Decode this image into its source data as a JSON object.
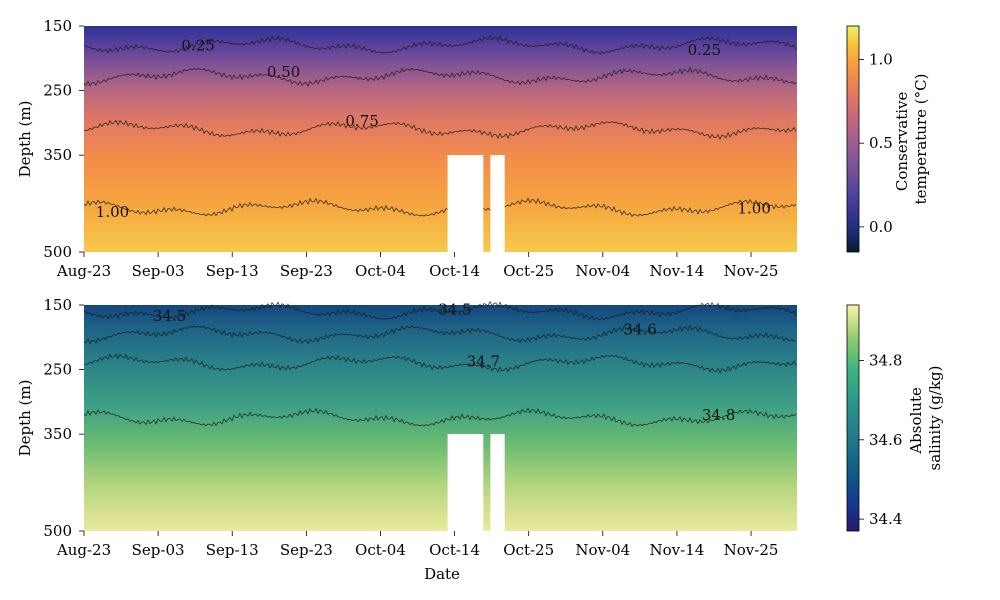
{
  "chart_data": [
    {
      "type": "heatmap",
      "title": "",
      "xlabel": "",
      "ylabel": "Depth (m)",
      "x_ticks": [
        "Aug-23",
        "Sep-03",
        "Sep-13",
        "Sep-23",
        "Oct-04",
        "Oct-14",
        "Oct-25",
        "Nov-04",
        "Nov-14",
        "Nov-25"
      ],
      "xlim": [
        "2021-08-23",
        "2021-12-01"
      ],
      "y_ticks": [
        150,
        250,
        350,
        500
      ],
      "ylim": [
        500,
        150
      ],
      "colorbar": {
        "label": "Conservative temperature (°C)",
        "label_lines": [
          "Conservative",
          "temperature (°C)"
        ],
        "colormap": "thermal",
        "range": [
          -0.15,
          1.2
        ],
        "ticks": [
          "0.0",
          "0.5",
          "1.0"
        ]
      },
      "gaps": [
        {
          "start": "2021-10-13",
          "end": "2021-10-18",
          "depth_from": 350
        },
        {
          "start": "2021-10-19",
          "end": "2021-10-21",
          "depth_from": 350
        }
      ],
      "contours": [
        {
          "level": 0.25,
          "mean_depth": 180,
          "labels": [
            {
              "text": "0.25",
              "date": "2021-09-08",
              "depth": 188
            },
            {
              "text": "0.25",
              "date": "2021-11-18",
              "depth": 195
            }
          ]
        },
        {
          "level": 0.5,
          "mean_depth": 228,
          "labels": [
            {
              "text": "0.50",
              "date": "2021-09-20",
              "depth": 229
            }
          ]
        },
        {
          "level": 0.75,
          "mean_depth": 310,
          "labels": [
            {
              "text": "0.75",
              "date": "2021-10-01",
              "depth": 305
            }
          ]
        },
        {
          "level": 1.0,
          "mean_depth": 432,
          "labels": [
            {
              "text": "1.00",
              "date": "2021-08-27",
              "depth": 446
            },
            {
              "text": "1.00",
              "date": "2021-11-25",
              "depth": 440
            }
          ]
        }
      ]
    },
    {
      "type": "heatmap",
      "title": "",
      "xlabel": "Date",
      "ylabel": "Depth (m)",
      "x_ticks": [
        "Aug-23",
        "Sep-03",
        "Sep-13",
        "Sep-23",
        "Oct-04",
        "Oct-14",
        "Oct-25",
        "Nov-04",
        "Nov-14",
        "Nov-25"
      ],
      "xlim": [
        "2021-08-23",
        "2021-12-01"
      ],
      "y_ticks": [
        150,
        250,
        350,
        500
      ],
      "ylim": [
        500,
        150
      ],
      "colorbar": {
        "label": "Absolute salinity (g/kg)",
        "label_lines": [
          "Absolute",
          "salinity (g/kg)"
        ],
        "colormap": "haline",
        "range": [
          34.37,
          34.94
        ],
        "ticks": [
          "34.4",
          "34.6",
          "34.8"
        ]
      },
      "gaps": [
        {
          "start": "2021-10-13",
          "end": "2021-10-18",
          "depth_from": 350
        },
        {
          "start": "2021-10-19",
          "end": "2021-10-21",
          "depth_from": 350
        }
      ],
      "contours": [
        {
          "level": 34.5,
          "mean_depth": 160,
          "labels": [
            {
              "text": "34.5",
              "date": "2021-09-04",
              "depth": 175
            },
            {
              "text": "34.5",
              "date": "2021-10-14",
              "depth": 165
            }
          ]
        },
        {
          "level": 34.6,
          "mean_depth": 195,
          "labels": [
            {
              "text": "34.6",
              "date": "2021-11-09",
              "depth": 196
            }
          ]
        },
        {
          "level": 34.7,
          "mean_depth": 240,
          "labels": [
            {
              "text": "34.7",
              "date": "2021-10-18",
              "depth": 245
            }
          ]
        },
        {
          "level": 34.8,
          "mean_depth": 325,
          "labels": [
            {
              "text": "34.8",
              "date": "2021-11-20",
              "depth": 328
            }
          ]
        }
      ]
    }
  ]
}
